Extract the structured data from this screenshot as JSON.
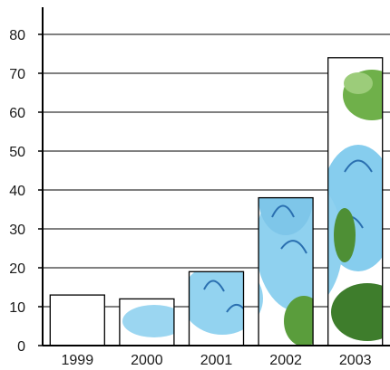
{
  "chart_data": {
    "type": "bar",
    "categories": [
      "1999",
      "2000",
      "2001",
      "2002",
      "2003"
    ],
    "values": [
      13,
      12,
      19,
      38,
      74
    ],
    "ylim": [
      0,
      80
    ],
    "yticks": [
      "0",
      "10",
      "20",
      "30",
      "40",
      "50",
      "60",
      "70",
      "80"
    ],
    "grid": true,
    "legend": "none",
    "bar_fill": "pictorial flower image (blue petals, green leaves)",
    "colors": {
      "petal": "#7fc8e8",
      "petal_stroke": "#2a6fb0",
      "leaf": "#6fb04a",
      "leaf_dark": "#3e7d2c",
      "gridline": "#000000",
      "bar_border": "#000000"
    }
  }
}
